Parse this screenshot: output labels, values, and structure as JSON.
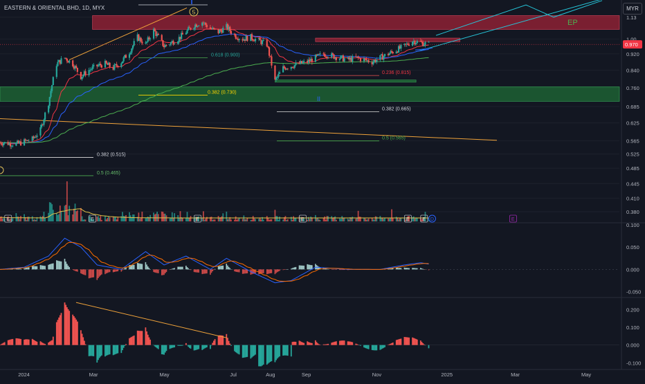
{
  "title": "EASTERN & ORIENTAL BHD, 1D, MYX",
  "currency_label": "MYR",
  "colors": {
    "background": "#131722",
    "up": "#26a69a",
    "down": "#ef5350",
    "grid": "#1e222d",
    "axis_text": "#b2b5be",
    "price_badge": "#f23645",
    "resistance_zone": "#b2243a",
    "support_zone": "#1f6b36",
    "ema_fast": "#f23645",
    "ema_mid": "#2962ff",
    "ema_slow": "#4caf50",
    "trend_orange": "#f0a33a",
    "macd_line": "#2962ff",
    "signal_line": "#ff6d00",
    "projection": "#26c6da"
  },
  "chart_data": [
    {
      "type": "candlestick",
      "panel": "price",
      "x_labels": [
        "2024",
        "Mar",
        "May",
        "Jul",
        "Aug",
        "Sep",
        "Nov",
        "2025",
        "Mar",
        "May"
      ],
      "y_ticks": [
        "1.13",
        "1.00",
        "0.920",
        "0.840",
        "0.760",
        "0.685",
        "0.625",
        "0.565",
        "0.525",
        "0.485",
        "0.445",
        "0.410",
        "0.380"
      ],
      "y_scale": "log",
      "last_price": "0.970",
      "x_range": [
        "2023-12-11",
        "2025-05-30"
      ],
      "close_series": [
        [
          "2023-12-11",
          0.56
        ],
        [
          "2023-12-25",
          0.555
        ],
        [
          "2024-01-08",
          0.57
        ],
        [
          "2024-01-15",
          0.6
        ],
        [
          "2024-01-22",
          0.7
        ],
        [
          "2024-01-29",
          0.87
        ],
        [
          "2024-02-05",
          0.9
        ],
        [
          "2024-02-12",
          0.87
        ],
        [
          "2024-02-19",
          0.81
        ],
        [
          "2024-02-26",
          0.84
        ],
        [
          "2024-03-04",
          0.86
        ],
        [
          "2024-03-11",
          0.87
        ],
        [
          "2024-03-18",
          0.85
        ],
        [
          "2024-03-25",
          0.88
        ],
        [
          "2024-04-01",
          0.93
        ],
        [
          "2024-04-08",
          1.01
        ],
        [
          "2024-04-15",
          0.97
        ],
        [
          "2024-04-22",
          1.05
        ],
        [
          "2024-05-01",
          0.96
        ],
        [
          "2024-05-13",
          1.0
        ],
        [
          "2024-05-20",
          1.04
        ],
        [
          "2024-05-27",
          1.08
        ],
        [
          "2024-06-03",
          1.1
        ],
        [
          "2024-06-10",
          1.06
        ],
        [
          "2024-06-17",
          1.04
        ],
        [
          "2024-06-24",
          1.07
        ],
        [
          "2024-07-01",
          1.02
        ],
        [
          "2024-07-08",
          1.0
        ],
        [
          "2024-07-15",
          1.01
        ],
        [
          "2024-07-22",
          0.99
        ],
        [
          "2024-07-29",
          0.97
        ],
        [
          "2024-08-05",
          0.79
        ],
        [
          "2024-08-12",
          0.85
        ],
        [
          "2024-08-19",
          0.86
        ],
        [
          "2024-08-26",
          0.87
        ],
        [
          "2024-09-02",
          0.88
        ],
        [
          "2024-09-09",
          0.9
        ],
        [
          "2024-09-16",
          0.92
        ],
        [
          "2024-09-23",
          0.91
        ],
        [
          "2024-09-30",
          0.9
        ],
        [
          "2024-10-07",
          0.89
        ],
        [
          "2024-10-14",
          0.9
        ],
        [
          "2024-10-21",
          0.89
        ],
        [
          "2024-10-28",
          0.88
        ],
        [
          "2024-11-04",
          0.9
        ],
        [
          "2024-11-11",
          0.92
        ],
        [
          "2024-11-18",
          0.94
        ],
        [
          "2024-11-25",
          0.96
        ],
        [
          "2024-12-02",
          0.99
        ],
        [
          "2024-12-09",
          0.98
        ],
        [
          "2024-12-16",
          0.97
        ]
      ],
      "zones": [
        {
          "from": "2024-02-29",
          "to": "2025-05-30",
          "low": 1.055,
          "high": 1.14
        },
        {
          "from": "2024-09-09",
          "to": "2025-01-12",
          "low": 0.985,
          "high": 1.005
        },
        {
          "from": "2023-12-11",
          "to": "2025-05-30",
          "low": 0.705,
          "high": 0.765
        },
        {
          "from": "2024-08-05",
          "to": "2024-12-05",
          "low": 0.785,
          "high": 0.795
        }
      ],
      "fib_levels": [
        {
          "label": "0.618 (0.900)",
          "price": 0.9
        },
        {
          "label": "0.382 (0.730)",
          "price": 0.73
        },
        {
          "label": "0.236 (0.815)",
          "price": 0.815
        },
        {
          "label": "0.382 (0.665)",
          "price": 0.665
        },
        {
          "label": "0.5 (0.565)",
          "price": 0.565
        },
        {
          "label": "0.382 (0.515)",
          "price": 0.515
        },
        {
          "label": "0.5 (0.465)",
          "price": 0.465
        }
      ],
      "annotations": [
        "5",
        "II",
        "EP"
      ],
      "earnings_marks": [
        "E",
        "E",
        "E",
        "E",
        "E",
        "E",
        "D",
        "E"
      ]
    },
    {
      "type": "line",
      "panel": "macd",
      "name": "",
      "y_ticks": [
        "0.100",
        "0.050",
        "0.000",
        "-0.050"
      ],
      "ylim": [
        -0.06,
        0.1
      ],
      "series": [
        {
          "name": "",
          "values": [
            [
              "2023-12-11",
              0.0
            ],
            [
              "2024-01-01",
              0.005
            ],
            [
              "2024-01-22",
              0.03
            ],
            [
              "2024-02-05",
              0.07
            ],
            [
              "2024-02-19",
              0.05
            ],
            [
              "2024-03-04",
              0.01
            ],
            [
              "2024-03-25",
              0.0
            ],
            [
              "2024-04-15",
              0.04
            ],
            [
              "2024-05-01",
              0.01
            ],
            [
              "2024-05-20",
              0.03
            ],
            [
              "2024-06-10",
              0.0
            ],
            [
              "2024-06-24",
              0.025
            ],
            [
              "2024-07-15",
              -0.005
            ],
            [
              "2024-08-05",
              -0.03
            ],
            [
              "2024-08-19",
              -0.025
            ],
            [
              "2024-09-09",
              0.005
            ],
            [
              "2024-10-07",
              0.0
            ],
            [
              "2024-11-04",
              0.0
            ],
            [
              "2024-11-25",
              0.01
            ],
            [
              "2024-12-09",
              0.015
            ],
            [
              "2024-12-20",
              0.01
            ]
          ]
        }
      ]
    },
    {
      "type": "bar",
      "panel": "oscillator",
      "y_ticks": [
        "0.200",
        "0.100",
        "0.000",
        "-0.100"
      ],
      "ylim": [
        -0.13,
        0.26
      ]
    }
  ]
}
